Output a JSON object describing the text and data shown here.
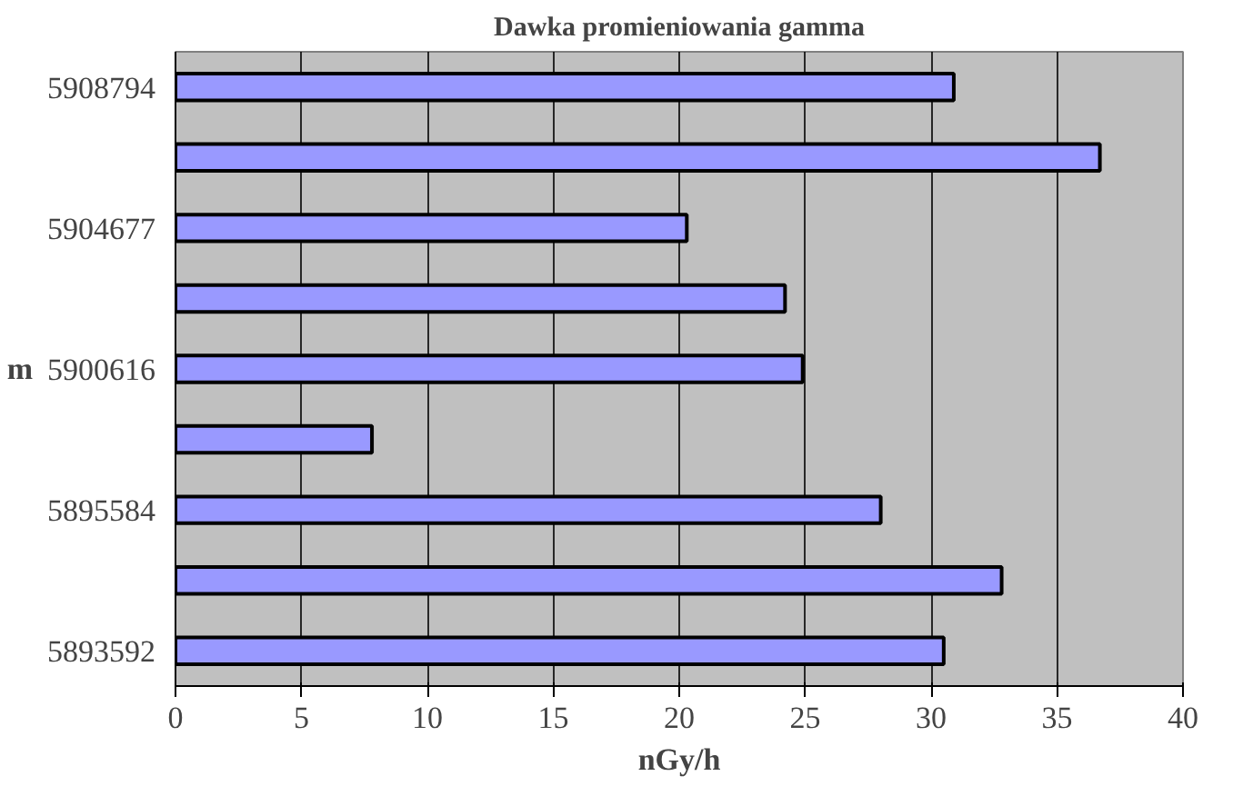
{
  "chart_data": {
    "type": "bar",
    "orientation": "horizontal",
    "title": "Dawka promieniowania gamma",
    "xlabel": "nGy/h",
    "ylabel": "m",
    "categories": [
      "5908794",
      null,
      "5904677",
      null,
      "5900616",
      null,
      "5895584",
      null,
      "5893592"
    ],
    "values": [
      30.9,
      36.7,
      20.3,
      24.2,
      24.9,
      7.8,
      28.0,
      32.8,
      30.5
    ],
    "color": "#9999ff",
    "xlim": [
      0,
      40
    ],
    "xticks": [
      0,
      5,
      10,
      15,
      20,
      25,
      30,
      35,
      40
    ],
    "grid": "x"
  }
}
